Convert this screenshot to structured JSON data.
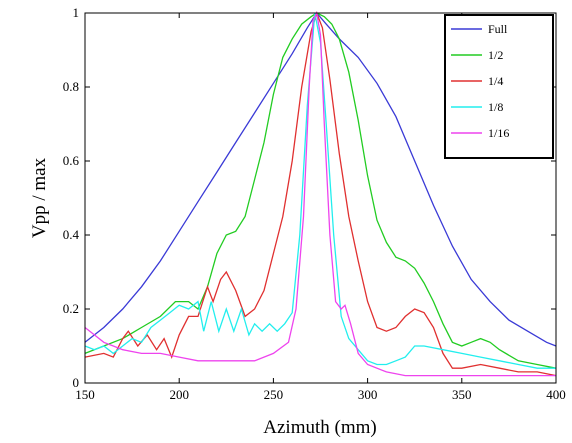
{
  "chart_data": {
    "type": "line",
    "title": "",
    "xlabel": "Azimuth (mm)",
    "ylabel": "Vpp / max",
    "xlim": [
      150,
      400
    ],
    "ylim": [
      0,
      1
    ],
    "xticks": [
      "150",
      "200",
      "250",
      "300",
      "350",
      "400"
    ],
    "yticks": [
      "0",
      "0.2",
      "0.4",
      "0.6",
      "0.8",
      "1"
    ],
    "grid": false,
    "legend_position": "top-right",
    "series": [
      {
        "name": "Full",
        "color": "#3a3ad6",
        "points": [
          [
            150,
            0.11
          ],
          [
            160,
            0.15
          ],
          [
            170,
            0.2
          ],
          [
            180,
            0.26
          ],
          [
            190,
            0.33
          ],
          [
            200,
            0.41
          ],
          [
            210,
            0.49
          ],
          [
            220,
            0.57
          ],
          [
            230,
            0.65
          ],
          [
            240,
            0.73
          ],
          [
            250,
            0.81
          ],
          [
            260,
            0.89
          ],
          [
            268,
            0.96
          ],
          [
            273,
            1.0
          ],
          [
            278,
            0.97
          ],
          [
            285,
            0.93
          ],
          [
            295,
            0.88
          ],
          [
            305,
            0.81
          ],
          [
            315,
            0.72
          ],
          [
            325,
            0.6
          ],
          [
            335,
            0.48
          ],
          [
            345,
            0.37
          ],
          [
            355,
            0.28
          ],
          [
            365,
            0.22
          ],
          [
            375,
            0.17
          ],
          [
            385,
            0.14
          ],
          [
            395,
            0.11
          ],
          [
            400,
            0.1
          ]
        ]
      },
      {
        "name": "1/2",
        "color": "#22cc22",
        "points": [
          [
            150,
            0.08
          ],
          [
            160,
            0.1
          ],
          [
            170,
            0.12
          ],
          [
            180,
            0.15
          ],
          [
            190,
            0.18
          ],
          [
            198,
            0.22
          ],
          [
            205,
            0.22
          ],
          [
            210,
            0.2
          ],
          [
            215,
            0.26
          ],
          [
            220,
            0.35
          ],
          [
            225,
            0.4
          ],
          [
            230,
            0.41
          ],
          [
            235,
            0.45
          ],
          [
            240,
            0.55
          ],
          [
            245,
            0.65
          ],
          [
            250,
            0.78
          ],
          [
            255,
            0.88
          ],
          [
            260,
            0.93
          ],
          [
            265,
            0.97
          ],
          [
            270,
            0.99
          ],
          [
            273,
            1.0
          ],
          [
            277,
            0.99
          ],
          [
            281,
            0.97
          ],
          [
            285,
            0.93
          ],
          [
            290,
            0.84
          ],
          [
            295,
            0.71
          ],
          [
            300,
            0.56
          ],
          [
            305,
            0.44
          ],
          [
            310,
            0.38
          ],
          [
            315,
            0.34
          ],
          [
            320,
            0.33
          ],
          [
            325,
            0.31
          ],
          [
            330,
            0.27
          ],
          [
            335,
            0.22
          ],
          [
            340,
            0.16
          ],
          [
            345,
            0.11
          ],
          [
            350,
            0.1
          ],
          [
            355,
            0.11
          ],
          [
            360,
            0.12
          ],
          [
            365,
            0.11
          ],
          [
            370,
            0.09
          ],
          [
            380,
            0.06
          ],
          [
            390,
            0.05
          ],
          [
            400,
            0.04
          ]
        ]
      },
      {
        "name": "1/4",
        "color": "#e03030",
        "points": [
          [
            150,
            0.07
          ],
          [
            160,
            0.08
          ],
          [
            165,
            0.07
          ],
          [
            170,
            0.12
          ],
          [
            173,
            0.14
          ],
          [
            178,
            0.1
          ],
          [
            183,
            0.13
          ],
          [
            188,
            0.09
          ],
          [
            192,
            0.12
          ],
          [
            196,
            0.07
          ],
          [
            200,
            0.13
          ],
          [
            205,
            0.18
          ],
          [
            210,
            0.18
          ],
          [
            215,
            0.26
          ],
          [
            218,
            0.22
          ],
          [
            222,
            0.28
          ],
          [
            225,
            0.3
          ],
          [
            230,
            0.25
          ],
          [
            235,
            0.18
          ],
          [
            240,
            0.2
          ],
          [
            245,
            0.25
          ],
          [
            250,
            0.35
          ],
          [
            255,
            0.45
          ],
          [
            260,
            0.6
          ],
          [
            265,
            0.8
          ],
          [
            270,
            0.95
          ],
          [
            273,
            1.0
          ],
          [
            276,
            0.96
          ],
          [
            280,
            0.82
          ],
          [
            285,
            0.62
          ],
          [
            290,
            0.45
          ],
          [
            295,
            0.33
          ],
          [
            300,
            0.22
          ],
          [
            305,
            0.15
          ],
          [
            310,
            0.14
          ],
          [
            315,
            0.15
          ],
          [
            320,
            0.18
          ],
          [
            325,
            0.2
          ],
          [
            330,
            0.19
          ],
          [
            335,
            0.15
          ],
          [
            340,
            0.08
          ],
          [
            345,
            0.04
          ],
          [
            350,
            0.04
          ],
          [
            360,
            0.05
          ],
          [
            370,
            0.04
          ],
          [
            380,
            0.03
          ],
          [
            390,
            0.03
          ],
          [
            400,
            0.02
          ]
        ]
      },
      {
        "name": "1/8",
        "color": "#22eeee",
        "points": [
          [
            150,
            0.1
          ],
          [
            155,
            0.09
          ],
          [
            160,
            0.1
          ],
          [
            165,
            0.08
          ],
          [
            170,
            0.1
          ],
          [
            175,
            0.12
          ],
          [
            180,
            0.11
          ],
          [
            185,
            0.15
          ],
          [
            190,
            0.17
          ],
          [
            195,
            0.19
          ],
          [
            200,
            0.21
          ],
          [
            205,
            0.2
          ],
          [
            210,
            0.22
          ],
          [
            213,
            0.14
          ],
          [
            217,
            0.22
          ],
          [
            221,
            0.14
          ],
          [
            225,
            0.2
          ],
          [
            229,
            0.14
          ],
          [
            233,
            0.2
          ],
          [
            237,
            0.13
          ],
          [
            240,
            0.16
          ],
          [
            244,
            0.14
          ],
          [
            248,
            0.16
          ],
          [
            252,
            0.14
          ],
          [
            256,
            0.16
          ],
          [
            260,
            0.19
          ],
          [
            264,
            0.4
          ],
          [
            268,
            0.75
          ],
          [
            272,
            1.0
          ],
          [
            275,
            0.92
          ],
          [
            278,
            0.7
          ],
          [
            282,
            0.4
          ],
          [
            286,
            0.18
          ],
          [
            290,
            0.12
          ],
          [
            295,
            0.09
          ],
          [
            300,
            0.06
          ],
          [
            305,
            0.05
          ],
          [
            310,
            0.05
          ],
          [
            315,
            0.06
          ],
          [
            320,
            0.07
          ],
          [
            325,
            0.1
          ],
          [
            330,
            0.1
          ],
          [
            340,
            0.09
          ],
          [
            350,
            0.08
          ],
          [
            360,
            0.07
          ],
          [
            370,
            0.06
          ],
          [
            380,
            0.05
          ],
          [
            390,
            0.04
          ],
          [
            400,
            0.04
          ]
        ]
      },
      {
        "name": "1/16",
        "color": "#ee44ee",
        "points": [
          [
            150,
            0.15
          ],
          [
            155,
            0.13
          ],
          [
            160,
            0.11
          ],
          [
            165,
            0.1
          ],
          [
            170,
            0.09
          ],
          [
            180,
            0.08
          ],
          [
            190,
            0.08
          ],
          [
            200,
            0.07
          ],
          [
            210,
            0.06
          ],
          [
            220,
            0.06
          ],
          [
            230,
            0.06
          ],
          [
            240,
            0.06
          ],
          [
            250,
            0.08
          ],
          [
            258,
            0.11
          ],
          [
            262,
            0.2
          ],
          [
            266,
            0.45
          ],
          [
            269,
            0.8
          ],
          [
            271,
            0.98
          ],
          [
            273,
            1.0
          ],
          [
            275,
            0.94
          ],
          [
            277,
            0.7
          ],
          [
            280,
            0.4
          ],
          [
            283,
            0.22
          ],
          [
            286,
            0.2
          ],
          [
            288,
            0.21
          ],
          [
            291,
            0.16
          ],
          [
            295,
            0.08
          ],
          [
            300,
            0.05
          ],
          [
            310,
            0.03
          ],
          [
            320,
            0.02
          ],
          [
            330,
            0.02
          ],
          [
            340,
            0.02
          ],
          [
            350,
            0.02
          ],
          [
            360,
            0.02
          ],
          [
            370,
            0.02
          ],
          [
            380,
            0.02
          ],
          [
            390,
            0.02
          ],
          [
            400,
            0.02
          ]
        ]
      }
    ]
  }
}
